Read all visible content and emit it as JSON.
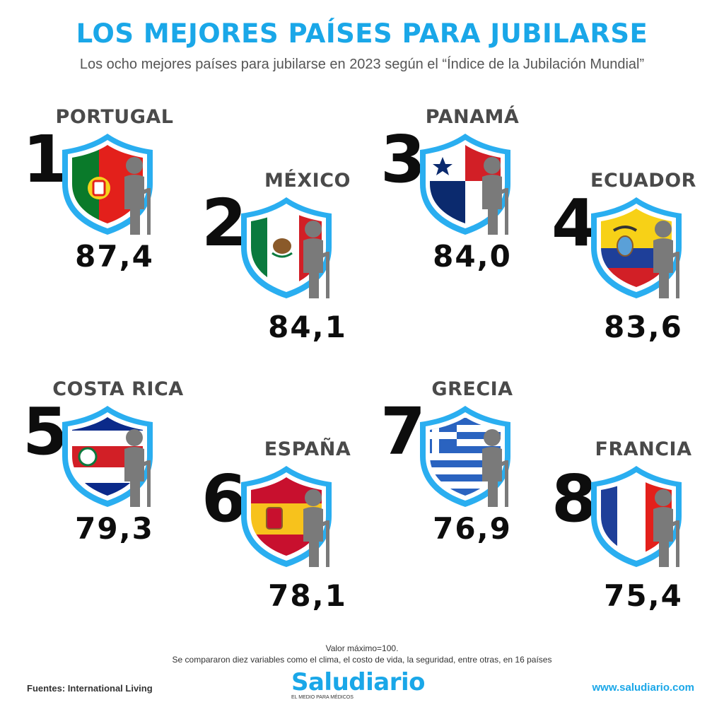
{
  "header": {
    "title": "LOS MEJORES PAÍSES PARA JUBILARSE",
    "subtitle": "Los ocho mejores países para jubilarse en 2023 según el “Índice de la Jubilación Mundial”"
  },
  "countries": [
    {
      "rank": "1",
      "name": "PORTUGAL",
      "score": "87,4",
      "flag": "portugal-flag-icon"
    },
    {
      "rank": "2",
      "name": "MÉXICO",
      "score": "84,1",
      "flag": "mexico-flag-icon"
    },
    {
      "rank": "3",
      "name": "PANAMÁ",
      "score": "84,0",
      "flag": "panama-flag-icon"
    },
    {
      "rank": "4",
      "name": "ECUADOR",
      "score": "83,6",
      "flag": "ecuador-flag-icon"
    },
    {
      "rank": "5",
      "name": "COSTA RICA",
      "score": "79,3",
      "flag": "costa-rica-flag-icon"
    },
    {
      "rank": "6",
      "name": "ESPAÑA",
      "score": "78,1",
      "flag": "spain-flag-icon"
    },
    {
      "rank": "7",
      "name": "GRECIA",
      "score": "76,9",
      "flag": "greece-flag-icon"
    },
    {
      "rank": "8",
      "name": "FRANCIA",
      "score": "75,4",
      "flag": "france-flag-icon"
    }
  ],
  "notes": {
    "max_value": "Valor máximo=100.",
    "method": "Se compararon diez variables como el clima, el costo de vida, la seguridad, entre otras, en 16 países"
  },
  "footer": {
    "sources": "Fuentes: International Living",
    "logo": "Saludiario",
    "logo_tagline": "EL MEDIO PARA MÉDICOS",
    "website": "www.saludiario.com"
  },
  "colors": {
    "accent": "#1aa7e8",
    "figure": "#7a7a7a"
  }
}
